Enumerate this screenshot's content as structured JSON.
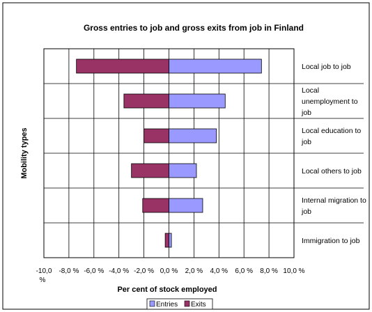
{
  "chart_data": {
    "type": "bar",
    "orientation": "horizontal",
    "title": "Gross entries to job and gross exits from job in Finland",
    "xlabel": "Per cent of stock employed",
    "ylabel": "Mobility types",
    "xlim": [
      -10,
      10
    ],
    "x_ticks": [
      -10,
      -8,
      -6,
      -4,
      -2,
      0,
      2,
      4,
      6,
      8,
      10
    ],
    "x_tick_labels": [
      "-10,0 %",
      "-8,0 %",
      "-6,0 %",
      "-4,0 %",
      "-2,0 %",
      "0,0 %",
      "2,0 %",
      "4,0 %",
      "6,0 %",
      "8,0 %",
      "10,0 %"
    ],
    "grid": true,
    "legend_position": "bottom",
    "categories": [
      "Local job to job",
      "Local unemployment to job",
      "Local education to job",
      "Local others to job",
      "Internal migration to job",
      "Immigration to job"
    ],
    "category_label_lines": [
      [
        "Local job to job"
      ],
      [
        "Local",
        "unemployment to",
        "job"
      ],
      [
        "Local education to",
        "job"
      ],
      [
        "Local others to job"
      ],
      [
        "Internal migration to",
        "job"
      ],
      [
        "Immigration to job"
      ]
    ],
    "series": [
      {
        "name": "Entries",
        "color": "#9999ff",
        "values": [
          7.4,
          4.5,
          3.8,
          2.2,
          2.7,
          0.2
        ]
      },
      {
        "name": "Exits",
        "color": "#993366",
        "values": [
          -7.4,
          -3.6,
          -2.0,
          -3.0,
          -2.1,
          -0.3
        ]
      }
    ]
  }
}
